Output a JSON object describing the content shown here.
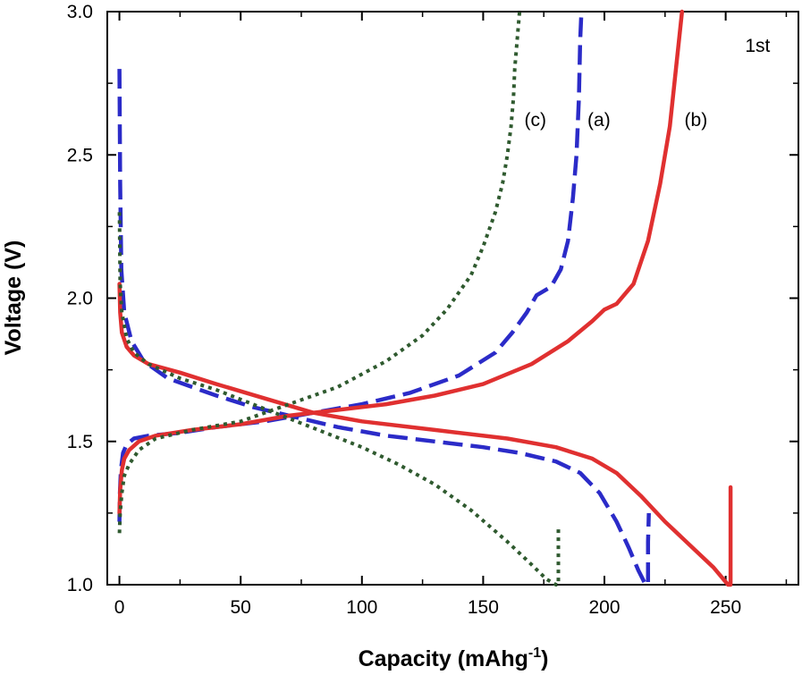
{
  "chart_data": {
    "type": "line",
    "title": "",
    "xlabel": "Capacity (mAhg",
    "xlabel_sup": "-1",
    "xlabel_end": ")",
    "ylabel": "Voltage (V)",
    "xlim": [
      -5,
      280
    ],
    "ylim": [
      1.0,
      3.0
    ],
    "x_ticks": [
      0,
      50,
      100,
      150,
      200,
      250
    ],
    "y_ticks": [
      1.0,
      1.5,
      2.0,
      2.5,
      3.0
    ],
    "x_tick_labels": [
      "0",
      "50",
      "100",
      "150",
      "200",
      "250"
    ],
    "y_tick_labels": [
      "1.0",
      "1.5",
      "2.0",
      "2.5",
      "3.0"
    ],
    "grid": false,
    "legend": "none",
    "annotations": [
      {
        "text": "1st",
        "x": 258,
        "y": 2.86
      },
      {
        "text": "(c)",
        "x": 167,
        "y": 2.6
      },
      {
        "text": "(a)",
        "x": 193,
        "y": 2.6
      },
      {
        "text": "(b)",
        "x": 233,
        "y": 2.6
      }
    ],
    "series": [
      {
        "label": "(a)",
        "color": "#2b2bc8",
        "style": "dashed",
        "discharge": {
          "x": [
            0,
            0.3,
            0.8,
            2,
            5,
            10,
            20,
            30,
            40,
            55,
            70,
            90,
            110,
            130,
            150,
            165,
            180,
            190,
            198,
            205,
            210,
            214,
            217,
            218,
            218,
            218.3
          ],
          "y": [
            2.8,
            2.4,
            2.1,
            1.95,
            1.85,
            1.78,
            1.72,
            1.69,
            1.66,
            1.62,
            1.59,
            1.55,
            1.52,
            1.5,
            1.48,
            1.46,
            1.43,
            1.39,
            1.32,
            1.22,
            1.13,
            1.05,
            1.0,
            1.0,
            1.15,
            1.25
          ]
        },
        "charge": {
          "x": [
            0,
            0.2,
            0.6,
            1.5,
            3,
            6,
            12,
            25,
            40,
            60,
            80,
            100,
            120,
            140,
            155,
            162,
            168,
            172,
            178,
            182,
            185,
            187,
            188.5,
            189.5,
            190,
            190.5
          ],
          "y": [
            1.22,
            1.32,
            1.4,
            1.46,
            1.49,
            1.51,
            1.52,
            1.53,
            1.55,
            1.57,
            1.6,
            1.63,
            1.67,
            1.73,
            1.81,
            1.88,
            1.95,
            2.01,
            2.04,
            2.1,
            2.2,
            2.35,
            2.5,
            2.7,
            2.9,
            3.0
          ]
        }
      },
      {
        "label": "(b)",
        "color": "#e03030",
        "style": "solid",
        "discharge": {
          "x": [
            0,
            0.3,
            1,
            3,
            6,
            12,
            25,
            40,
            60,
            80,
            100,
            130,
            160,
            180,
            195,
            205,
            215,
            225,
            235,
            245,
            251,
            252,
            252,
            252
          ],
          "y": [
            2.05,
            1.95,
            1.88,
            1.83,
            1.8,
            1.77,
            1.74,
            1.7,
            1.65,
            1.6,
            1.57,
            1.54,
            1.51,
            1.48,
            1.44,
            1.39,
            1.31,
            1.22,
            1.14,
            1.06,
            1.0,
            1.0,
            1.2,
            1.34
          ]
        },
        "charge": {
          "x": [
            0,
            0.3,
            1,
            2,
            4,
            8,
            15,
            30,
            50,
            70,
            90,
            110,
            130,
            150,
            170,
            185,
            195,
            200,
            205,
            212,
            218,
            223,
            227,
            229.5,
            231,
            232
          ],
          "y": [
            1.25,
            1.33,
            1.4,
            1.44,
            1.47,
            1.5,
            1.52,
            1.54,
            1.56,
            1.59,
            1.61,
            1.63,
            1.66,
            1.7,
            1.77,
            1.85,
            1.92,
            1.96,
            1.98,
            2.05,
            2.2,
            2.4,
            2.6,
            2.8,
            2.92,
            3.0
          ]
        }
      },
      {
        "label": "(c)",
        "color": "#2f5a2f",
        "style": "dotted",
        "discharge": {
          "x": [
            0,
            0.3,
            1,
            3,
            6,
            12,
            25,
            40,
            55,
            70,
            85,
            100,
            115,
            130,
            145,
            160,
            170,
            176,
            180,
            181,
            181,
            181
          ],
          "y": [
            2.3,
            2.05,
            1.95,
            1.86,
            1.81,
            1.77,
            1.72,
            1.68,
            1.63,
            1.58,
            1.53,
            1.48,
            1.42,
            1.35,
            1.26,
            1.15,
            1.07,
            1.02,
            1.0,
            1.0,
            1.1,
            1.2
          ]
        },
        "charge": {
          "x": [
            0,
            0.3,
            1,
            2,
            4,
            8,
            15,
            30,
            50,
            70,
            90,
            110,
            125,
            135,
            145,
            150,
            155,
            158,
            160,
            161.5,
            162.5,
            163,
            164,
            165
          ],
          "y": [
            1.18,
            1.25,
            1.32,
            1.38,
            1.42,
            1.47,
            1.51,
            1.54,
            1.57,
            1.63,
            1.69,
            1.78,
            1.87,
            1.96,
            2.08,
            2.18,
            2.3,
            2.4,
            2.5,
            2.6,
            2.7,
            2.8,
            2.9,
            3.0
          ]
        }
      }
    ]
  }
}
